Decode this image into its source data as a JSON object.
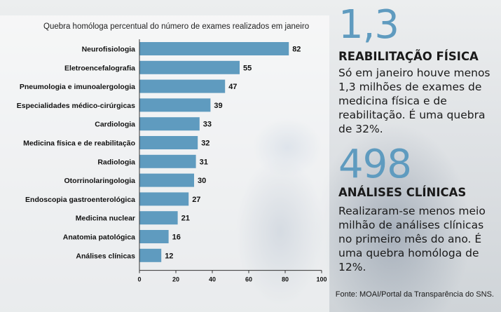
{
  "chart_data": {
    "type": "bar",
    "orientation": "horizontal",
    "title": "Quebra homóloga percentual do número de exames realizados em janeiro",
    "categories": [
      "Neurofisiologia",
      "Eletroencefalografia",
      "Pneumologia e imunoalergologia",
      "Especialidades médico-cirúrgicas",
      "Cardiologia",
      "Medicina física e de reabilitação",
      "Radiologia",
      "Otorrinolaringologia",
      "Endoscopia gastroenterológica",
      "Medicina nuclear",
      "Anatomia patológica",
      "Análises clínicas"
    ],
    "values": [
      82,
      55,
      47,
      39,
      33,
      32,
      31,
      30,
      27,
      21,
      16,
      12
    ],
    "xlim": [
      0,
      100
    ],
    "xticks": [
      0,
      20,
      40,
      60,
      80,
      100
    ],
    "bar_color": "#5f9bbf",
    "grid": false
  },
  "stats": [
    {
      "number": "1,3",
      "heading": "REABILITAÇÃO FÍSICA",
      "text": "Só em janeiro houve menos 1,3 milhões de exames de medicina física e de reabilitação. É uma quebra de 32%."
    },
    {
      "number": "498",
      "heading": "ANÁLISES CLÍNICAS",
      "text": "Realizaram-se menos meio milhão de análises clínicas no primeiro mês do ano. É uma quebra homóloga de 12%."
    }
  ],
  "source": "Fonte: MOAI/Portal da Transparência do SNS.",
  "colors": {
    "accent": "#5f9bbf",
    "text": "#1a1a1a"
  }
}
